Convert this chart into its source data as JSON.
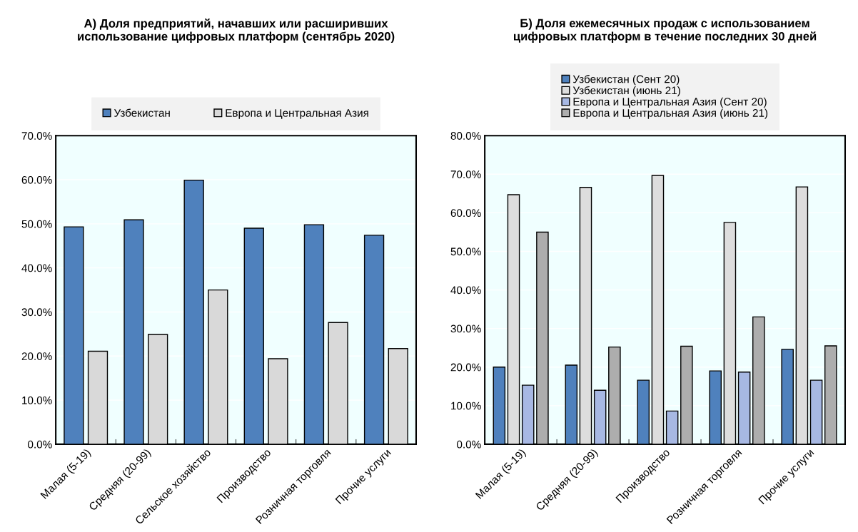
{
  "chart_data": [
    {
      "type": "bar",
      "title": "А) Доля предприятий, начавших или расширивших\nиспользование цифровых платформ (сентябрь 2020)",
      "categories": [
        "Малая (5-19)",
        "Средняя (20-99)",
        "Сельское хозяйство",
        "Производство",
        "Розничная торговля",
        "Прочие услуги"
      ],
      "series": [
        {
          "name": "Узбекистан",
          "color": "#4f81bd",
          "values": [
            49.3,
            50.9,
            59.9,
            49.0,
            49.8,
            47.4
          ]
        },
        {
          "name": "Европа и Центральная Азия",
          "color": "#d9d9d9",
          "values": [
            21.1,
            24.9,
            35.0,
            19.4,
            27.6,
            21.7
          ]
        }
      ],
      "ylim": [
        0,
        70
      ],
      "yticks": [
        {
          "value": 0,
          "label": "0.0%"
        },
        {
          "value": 10,
          "label": "10.0%"
        },
        {
          "value": 20,
          "label": "20.0%"
        },
        {
          "value": 30,
          "label": "30.0%"
        },
        {
          "value": 40,
          "label": "40.0%"
        },
        {
          "value": 50,
          "label": "50.0%"
        },
        {
          "value": 60,
          "label": "60.0%"
        },
        {
          "value": 70,
          "label": "70.0%"
        }
      ],
      "grid": "y",
      "legend": "top"
    },
    {
      "type": "bar",
      "title": "Б) Доля ежемесячных продаж с использованием\nцифровых платформ в течение последних 30 дней",
      "categories": [
        "Малая (5-19)",
        "Средняя (20-99)",
        "Производство",
        "Розничная торговля",
        "Прочие услуги"
      ],
      "series": [
        {
          "name": "Узбекистан (Сент 20)",
          "color": "#4f81bd",
          "values": [
            20.0,
            20.5,
            16.6,
            19.0,
            24.6
          ]
        },
        {
          "name": "Узбекистан (июнь 21)",
          "color": "#dddddd",
          "values": [
            64.7,
            66.6,
            69.7,
            57.5,
            66.7
          ]
        },
        {
          "name": "Европа и Центральная Азия (Сент 20)",
          "color": "#a7b8e3",
          "values": [
            15.3,
            14.0,
            8.6,
            18.7,
            16.6
          ]
        },
        {
          "name": "Европа и Центральная Азия (июнь 21)",
          "color": "#adadad",
          "values": [
            55.0,
            25.2,
            25.4,
            33.0,
            25.5
          ]
        }
      ],
      "ylim": [
        0,
        80
      ],
      "yticks": [
        {
          "value": 0,
          "label": "0.0%"
        },
        {
          "value": 10,
          "label": "10.0%"
        },
        {
          "value": 20,
          "label": "20.0%"
        },
        {
          "value": 30,
          "label": "30.0%"
        },
        {
          "value": 40,
          "label": "40.0%"
        },
        {
          "value": 50,
          "label": "50.0%"
        },
        {
          "value": 60,
          "label": "60.0%"
        },
        {
          "value": 70,
          "label": "70.0%"
        },
        {
          "value": 80,
          "label": "80.0%"
        }
      ],
      "grid": "y",
      "legend": "top"
    }
  ]
}
